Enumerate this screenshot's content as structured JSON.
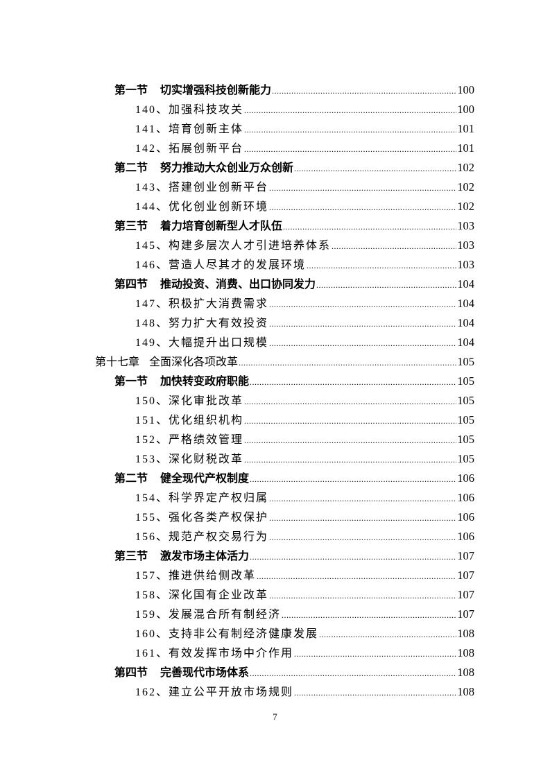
{
  "toc": [
    {
      "level": "section",
      "label": "第一节",
      "title": "切实增强科技创新能力",
      "page": "100"
    },
    {
      "level": "item",
      "label": "140、",
      "title": "加强科技攻关",
      "page": "100"
    },
    {
      "level": "item",
      "label": "141、",
      "title": "培育创新主体",
      "page": "101"
    },
    {
      "level": "item",
      "label": "142、",
      "title": "拓展创新平台",
      "page": "101"
    },
    {
      "level": "section",
      "label": "第二节",
      "title": "努力推动大众创业万众创新",
      "page": "102"
    },
    {
      "level": "item",
      "label": "143、",
      "title": "搭建创业创新平台",
      "page": "102"
    },
    {
      "level": "item",
      "label": "144、",
      "title": "优化创业创新环境",
      "page": "102"
    },
    {
      "level": "section",
      "label": "第三节",
      "title": "着力培育创新型人才队伍",
      "page": "103"
    },
    {
      "level": "item",
      "label": "145、",
      "title": "构建多层次人才引进培养体系",
      "page": "103"
    },
    {
      "level": "item",
      "label": "146、",
      "title": "营造人尽其才的发展环境",
      "page": "103"
    },
    {
      "level": "section",
      "label": "第四节",
      "title": "推动投资、消费、出口协同发力",
      "page": "104"
    },
    {
      "level": "item",
      "label": "147、",
      "title": "积极扩大消费需求",
      "page": "104"
    },
    {
      "level": "item",
      "label": "148、",
      "title": "努力扩大有效投资",
      "page": "104"
    },
    {
      "level": "item",
      "label": "149、",
      "title": "大幅提升出口规模",
      "page": "104"
    },
    {
      "level": "chapter",
      "label": "第十七章",
      "title": "全面深化各项改革",
      "page": "105"
    },
    {
      "level": "section",
      "label": "第一节",
      "title": "加快转变政府职能",
      "page": "105"
    },
    {
      "level": "item",
      "label": "150、",
      "title": "深化审批改革",
      "page": "105"
    },
    {
      "level": "item",
      "label": "151、",
      "title": "优化组织机构",
      "page": "105"
    },
    {
      "level": "item",
      "label": "152、",
      "title": "严格绩效管理",
      "page": "105"
    },
    {
      "level": "item",
      "label": "153、",
      "title": "深化财税改革",
      "page": "105"
    },
    {
      "level": "section",
      "label": "第二节",
      "title": "健全现代产权制度",
      "page": "106"
    },
    {
      "level": "item",
      "label": "154、",
      "title": "科学界定产权归属",
      "page": "106"
    },
    {
      "level": "item",
      "label": "155、",
      "title": "强化各类产权保护",
      "page": "106"
    },
    {
      "level": "item",
      "label": "156、",
      "title": "规范产权交易行为",
      "page": "106"
    },
    {
      "level": "section",
      "label": "第三节",
      "title": "激发市场主体活力",
      "page": "107"
    },
    {
      "level": "item",
      "label": "157、",
      "title": "推进供给侧改革",
      "page": "107"
    },
    {
      "level": "item",
      "label": "158、",
      "title": "深化国有企业改革",
      "page": "107"
    },
    {
      "level": "item",
      "label": "159、",
      "title": "发展混合所有制经济",
      "page": "107"
    },
    {
      "level": "item",
      "label": "160、",
      "title": "支持非公有制经济健康发展",
      "page": "108"
    },
    {
      "level": "item",
      "label": "161、",
      "title": "有效发挥市场中介作用",
      "page": "108"
    },
    {
      "level": "section",
      "label": "第四节",
      "title": "完善现代市场体系",
      "page": "108"
    },
    {
      "level": "item",
      "label": "162、",
      "title": "建立公平开放市场规则",
      "page": "108"
    }
  ],
  "footer": {
    "page_number": "7"
  }
}
